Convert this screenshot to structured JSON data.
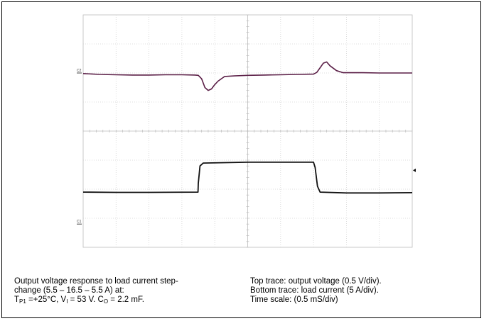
{
  "chart_data": {
    "type": "line",
    "title": "",
    "xlabel": "",
    "ylabel": "",
    "divisions": {
      "x": 10,
      "y": 8
    },
    "x_range_div": [
      0,
      10
    ],
    "series": [
      {
        "name": "Top trace: output voltage (0.5 V/div)",
        "marker": "C2",
        "color": "#5a1e46",
        "baseline_div": 2.0,
        "points": [
          [
            0,
            2.02
          ],
          [
            0.5,
            2.05
          ],
          [
            1.0,
            2.06
          ],
          [
            1.5,
            2.07
          ],
          [
            2.0,
            2.07
          ],
          [
            2.5,
            2.06
          ],
          [
            3.0,
            2.06
          ],
          [
            3.4,
            2.07
          ],
          [
            3.5,
            2.08
          ],
          [
            3.6,
            2.2
          ],
          [
            3.7,
            2.5
          ],
          [
            3.8,
            2.6
          ],
          [
            3.9,
            2.55
          ],
          [
            4.0,
            2.4
          ],
          [
            4.1,
            2.28
          ],
          [
            4.3,
            2.12
          ],
          [
            4.6,
            2.1
          ],
          [
            5.0,
            2.08
          ],
          [
            5.5,
            2.07
          ],
          [
            6.0,
            2.06
          ],
          [
            6.5,
            2.05
          ],
          [
            7.0,
            2.04
          ],
          [
            7.1,
            1.98
          ],
          [
            7.2,
            1.82
          ],
          [
            7.3,
            1.66
          ],
          [
            7.4,
            1.62
          ],
          [
            7.5,
            1.75
          ],
          [
            7.7,
            1.92
          ],
          [
            7.9,
            1.99
          ],
          [
            8.2,
            1.99
          ],
          [
            8.5,
            1.99
          ],
          [
            9.0,
            2.0
          ],
          [
            9.5,
            2.0
          ],
          [
            10,
            2.0
          ]
        ]
      },
      {
        "name": "Bottom trace: load current (5 A/div)",
        "marker": "C1",
        "color": "#111111",
        "baseline_div": 7.2,
        "points": [
          [
            0,
            6.1
          ],
          [
            1.0,
            6.11
          ],
          [
            2.0,
            6.11
          ],
          [
            3.49,
            6.1
          ],
          [
            3.5,
            5.8
          ],
          [
            3.55,
            5.2
          ],
          [
            3.65,
            5.1
          ],
          [
            5.0,
            5.07
          ],
          [
            6.0,
            5.07
          ],
          [
            7.0,
            5.07
          ],
          [
            7.05,
            5.25
          ],
          [
            7.12,
            5.9
          ],
          [
            7.2,
            6.1
          ],
          [
            8.0,
            6.13
          ],
          [
            9.0,
            6.13
          ],
          [
            10,
            6.12
          ]
        ]
      }
    ],
    "trigger_marker": {
      "y_div": 5.35
    }
  },
  "caption": {
    "left_line1": "Output voltage response to load current step-",
    "left_line2": "change (5.5 – 16.5 – 5.5 A) at:",
    "left_line3_a": "T",
    "left_line3_sub1": "P1",
    "left_line3_b": " =+25°C, V",
    "left_line3_sub2": "I",
    "left_line3_c": " = 53 V. C",
    "left_line3_sub3": "O",
    "left_line3_d": " = 2.2 mF.",
    "right_line1": "Top trace: output voltage (0.5 V/div).",
    "right_line2": "Bottom trace: load current (5 A/div).",
    "right_line3": "Time scale:  (0.5 mS/div)"
  }
}
